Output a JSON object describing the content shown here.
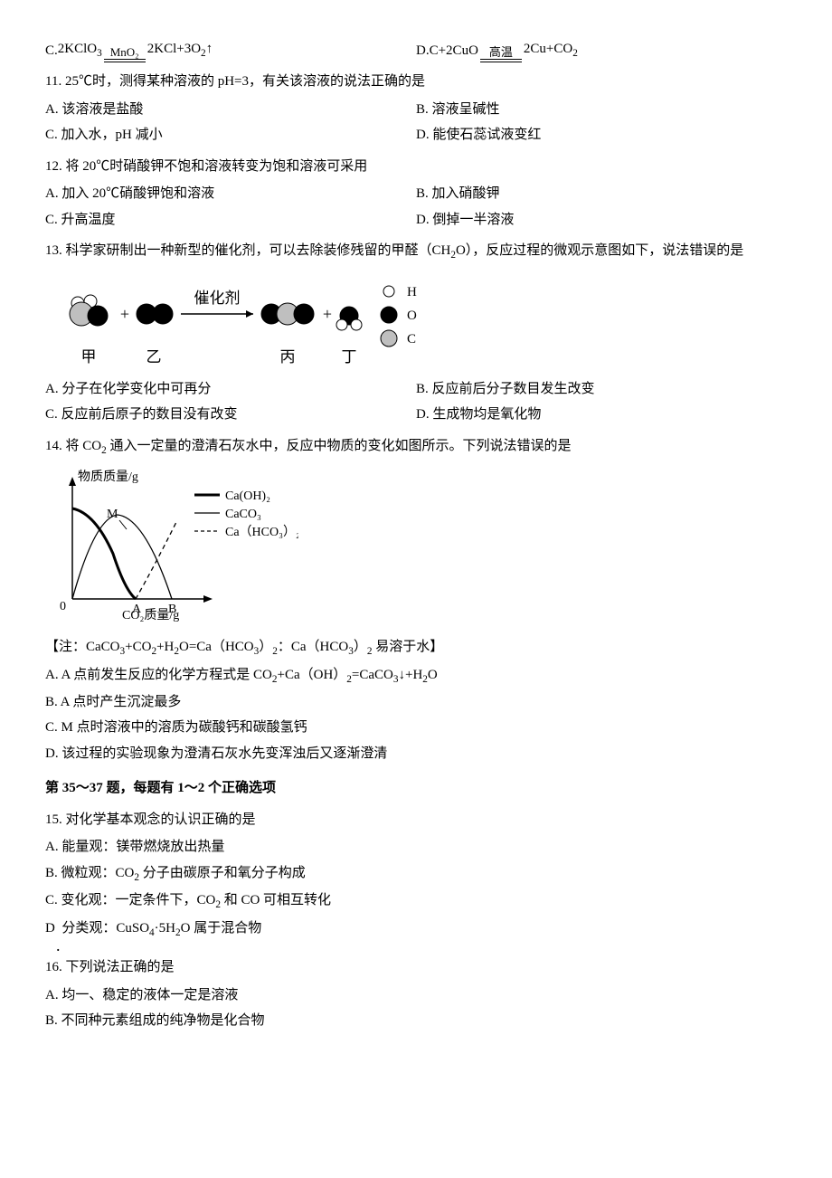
{
  "q10": {
    "optC_prefix": "C. ",
    "optC_left": "2KClO",
    "optC_left_sub": "3",
    "optC_cond": "MnO₂",
    "optC_right_a": "2KCl+3O",
    "optC_right_sub": "2",
    "optC_arrow_tail": "↑",
    "optD_prefix": "D. ",
    "optD_left": "C+2CuO",
    "optD_cond": "高温",
    "optD_right_a": "2Cu+CO",
    "optD_right_sub": "2"
  },
  "q11": {
    "prompt": "11. 25℃时，测得某种溶液的 pH=3，有关该溶液的说法正确的是",
    "A": "A. 该溶液是盐酸",
    "B": "B. 溶液呈碱性",
    "C": "C. 加入水，pH 减小",
    "D": "D. 能使石蕊试液变红"
  },
  "q12": {
    "prompt": "12. 将 20℃时硝酸钾不饱和溶液转变为饱和溶液可采用",
    "A": "A. 加入 20℃硝酸钾饱和溶液",
    "B": "B. 加入硝酸钾",
    "C": "C. 升高温度",
    "D": "D. 倒掉一半溶液"
  },
  "q13": {
    "prompt_a": "13. 科学家研制出一种新型的催化剂，可以去除装修残留的甲醛（CH",
    "prompt_sub": "2",
    "prompt_b": "O），反应过程的微观示意图如下，说法错误的是",
    "A": "A. 分子在化学变化中可再分",
    "B": "B. 反应前后分子数目发生改变",
    "C": "C. 反应前后原子的数目没有改变",
    "D": "D. 生成物均是氧化物",
    "diagram": {
      "arrow_label": "催化剂",
      "labels": [
        "甲",
        "乙",
        "丙",
        "丁"
      ],
      "legend": [
        {
          "txt": "H",
          "fill": "#ffffff",
          "stroke": "#000000"
        },
        {
          "txt": "O",
          "fill": "#000000",
          "stroke": "#000000"
        },
        {
          "txt": "C",
          "fill": "#bfbfbf",
          "stroke": "#000000"
        }
      ],
      "colors": {
        "H": "#ffffff",
        "O": "#000000",
        "C": "#bfbfbf",
        "stroke": "#000000",
        "text": "#000000"
      }
    }
  },
  "q14": {
    "prompt_a": "14. 将 CO",
    "prompt_sub1": "2",
    "prompt_b": " 通入一定量的澄清石灰水中，反应中物质的变化如图所示。下列说法错误的是",
    "chart": {
      "ylabel": "物质质量/g",
      "xlabel": "CO₂质量/g",
      "series": [
        {
          "name": "Ca(OH)₂",
          "style": "bold"
        },
        {
          "name": "CaCO₃",
          "style": "thin"
        },
        {
          "name": "Ca（HCO₃）₂",
          "style": "dash"
        }
      ],
      "marks": {
        "M": "M",
        "A": "A",
        "B": "B",
        "O": "0"
      },
      "colors": {
        "axis": "#000000",
        "bg": "#ffffff"
      }
    },
    "note_a": "【注：CaCO",
    "note_b": "+CO",
    "note_c": "+H",
    "note_d": "O=Ca（HCO",
    "note_e": "）",
    "note_f": "：Ca（HCO",
    "note_g": "）",
    "note_h": " 易溶于水】",
    "A_a": "A. A 点前发生反应的化学方程式是 CO",
    "A_b": "+Ca（OH）",
    "A_c": "=CaCO",
    "A_d": "↓+H",
    "A_e": "O",
    "B": "B. A 点时产生沉淀最多",
    "C": "C. M 点时溶液中的溶质为碳酸钙和碳酸氢钙",
    "D": "D. 该过程的实验现象为澄清石灰水先变浑浊后又逐渐澄清"
  },
  "section": "第 35～37 题，每题有 1～2 个正确选项",
  "q15": {
    "prompt": "15. 对化学基本观念的认识正确的是",
    "A": "A. 能量观：镁带燃烧放出热量",
    "B_a": "B. 微粒观：CO",
    "B_b": " 分子由碳原子和氧分子构成",
    "C_a": "C. 变化观：一定条件下，CO",
    "C_b": " 和 CO 可相互转化",
    "D_pre": "D",
    "D_a": "分类观：CuSO",
    "D_b": "·5H",
    "D_c": "O 属于混合物"
  },
  "q16": {
    "prompt": "16. 下列说法正确的是",
    "A": "A. 均一、稳定的液体一定是溶液",
    "B": "B. 不同种元素组成的纯净物是化合物"
  }
}
